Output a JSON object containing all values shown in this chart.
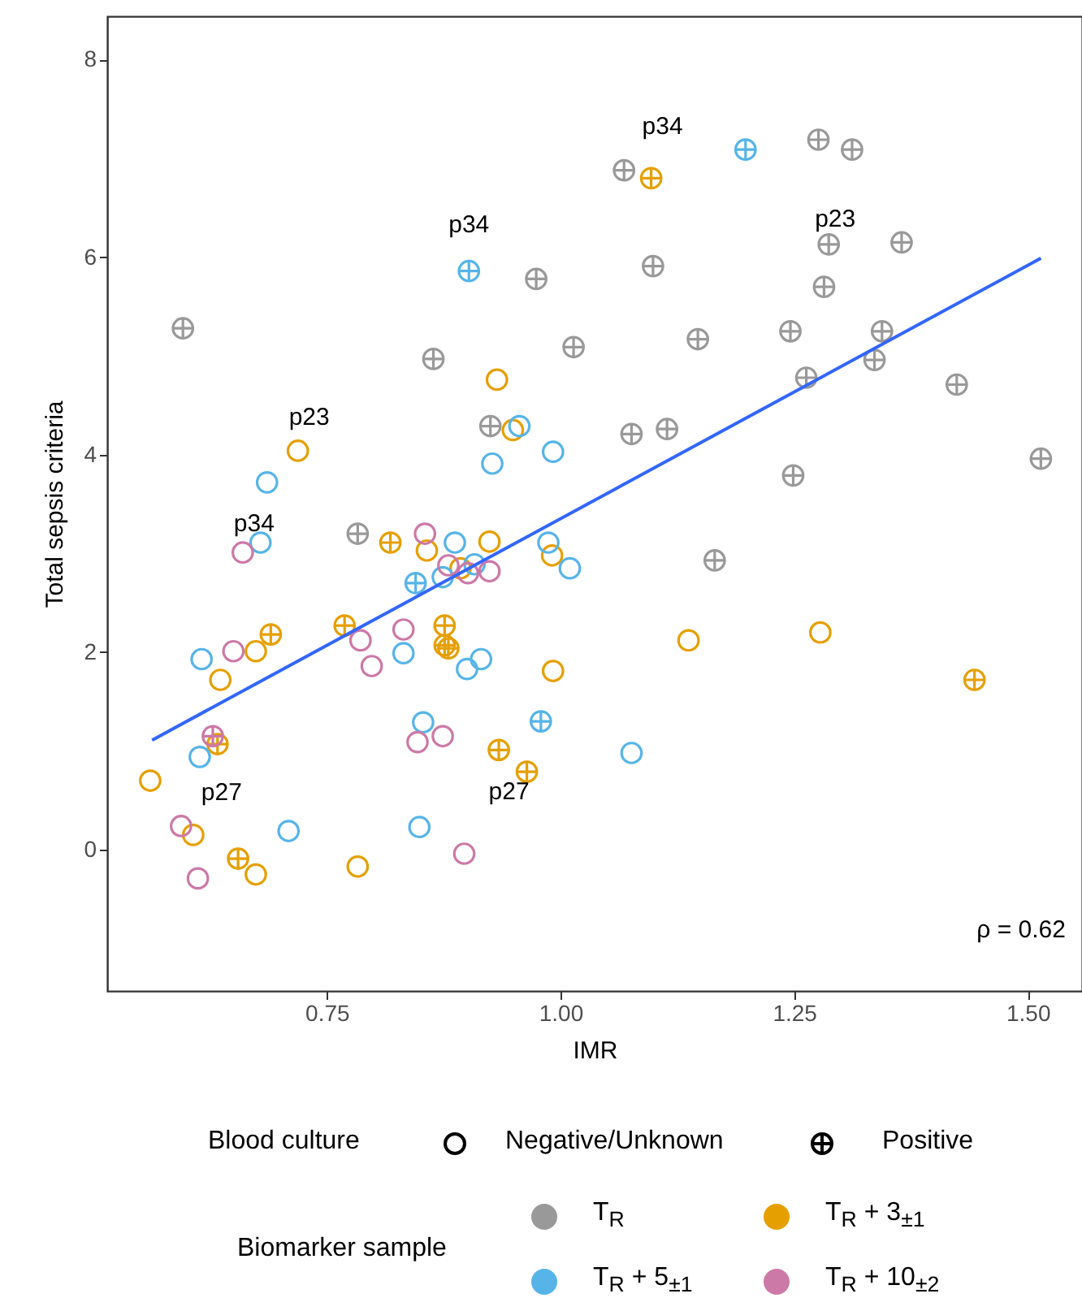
{
  "chart_data": {
    "type": "scatter",
    "xlabel": "IMR",
    "ylabel": "Total sepsis criteria",
    "legend_title": "Biomarker sample",
    "legend": "bottom",
    "grid": false,
    "xlim": [
      0.515,
      1.558
    ],
    "ylim": [
      -1.43,
      8.44
    ],
    "xticks": [
      {
        "value": 0.75,
        "label": "0.75"
      },
      {
        "value": 1.0,
        "label": "1.00"
      },
      {
        "value": 1.25,
        "label": "1.25"
      },
      {
        "value": 1.5,
        "label": "1.50"
      }
    ],
    "yticks": [
      0,
      2,
      4,
      6,
      8
    ],
    "annotations": [
      "Blood culture",
      "Negative/Unknown",
      "Positive",
      {
        "text": "p34",
        "x": 1.097,
        "y": 6.8
      },
      {
        "text": "p34",
        "x": 0.902,
        "y": 5.86
      },
      {
        "text": "p23",
        "x": 1.287,
        "y": 6.13
      },
      {
        "text": "p23",
        "x": 0.719,
        "y": 4.04
      },
      {
        "text": "p34",
        "x": 0.66,
        "y": 3.01
      },
      {
        "text": "p27",
        "x": 0.594,
        "y": 0.24
      },
      {
        "text": "p27",
        "x": 0.964,
        "y": 0.79
      },
      "ρ = 0.62"
    ],
    "series": [
      {
        "name": "T$_{R}$",
        "color": "#999999",
        "marker": "cross",
        "x": [
          0.596,
          0.864,
          0.974,
          1.014,
          0.925,
          0.783,
          1.068,
          1.276,
          1.312,
          1.287,
          1.365,
          1.099,
          1.282,
          1.147,
          1.246,
          1.344,
          1.336,
          1.263,
          1.424,
          1.076,
          1.114,
          1.249,
          1.514,
          1.165
        ],
        "values": [
          5.28,
          4.97,
          5.78,
          5.09,
          4.29,
          3.2,
          6.88,
          7.19,
          7.09,
          6.13,
          6.15,
          5.91,
          5.7,
          5.17,
          5.25,
          5.25,
          4.96,
          4.78,
          4.71,
          4.21,
          4.26,
          3.79,
          3.96,
          2.93
        ]
      },
      {
        "name": "T$_{R}$ + 3$_{±1}$",
        "color": "#e69f00",
        "marker": "circle",
        "x": [
          0.932,
          0.949,
          0.719,
          0.857,
          0.924,
          0.893,
          0.991,
          0.674,
          0.636,
          0.992,
          0.561,
          0.607,
          0.674,
          0.783,
          1.137,
          1.278
        ],
        "values": [
          4.76,
          4.25,
          4.04,
          3.03,
          3.12,
          2.85,
          2.98,
          2.01,
          1.72,
          1.81,
          0.7,
          0.15,
          -0.25,
          -0.17,
          2.12,
          2.2
        ]
      },
      {
        "color": "#e69f00",
        "marker": "cross",
        "x": [
          1.097,
          0.818,
          0.769,
          0.876,
          0.876,
          0.88,
          0.69,
          0.633,
          0.655,
          0.934,
          0.964,
          1.443
        ],
        "values": [
          6.8,
          3.11,
          2.27,
          2.27,
          2.07,
          2.04,
          2.18,
          1.07,
          -0.09,
          1.01,
          0.79,
          1.72
        ]
      },
      {
        "name": "T$_{R}$ + 5$_{±1}$",
        "color": "#56b4e9",
        "marker": "circle",
        "x": [
          0.956,
          0.992,
          0.927,
          0.686,
          0.679,
          0.887,
          0.874,
          0.908,
          0.987,
          1.01,
          0.832,
          0.9,
          0.915,
          0.616,
          0.614,
          0.709,
          0.853,
          0.849,
          1.076
        ],
        "values": [
          4.29,
          4.03,
          3.91,
          3.72,
          3.11,
          3.11,
          2.76,
          2.89,
          3.11,
          2.85,
          1.99,
          1.83,
          1.93,
          1.93,
          0.94,
          0.19,
          1.29,
          0.23,
          0.98
        ]
      },
      {
        "color": "#56b4e9",
        "marker": "cross",
        "x": [
          0.902,
          1.198,
          0.845,
          0.979
        ],
        "values": [
          5.86,
          7.09,
          2.7,
          1.3
        ]
      },
      {
        "name": "T$_{R}$ + 10$_{±2}$",
        "color": "#cc79a7",
        "marker": "circle",
        "x": [
          0.66,
          0.855,
          0.88,
          0.901,
          0.924,
          0.786,
          0.832,
          0.798,
          0.65,
          0.594,
          0.612,
          0.847,
          0.874,
          0.897
        ],
        "values": [
          3.01,
          3.2,
          2.88,
          2.8,
          2.82,
          2.12,
          2.23,
          1.86,
          2.01,
          0.24,
          -0.29,
          1.09,
          1.15,
          -0.04
        ]
      },
      {
        "color": "#cc79a7",
        "marker": "cross",
        "x": [
          0.628
        ],
        "values": [
          1.15
        ]
      },
      {
        "type": "line",
        "color": "#3366ff",
        "marker": "none",
        "x": [
          0.563,
          1.514
        ],
        "values": [
          1.11,
          5.99
        ]
      }
    ]
  }
}
